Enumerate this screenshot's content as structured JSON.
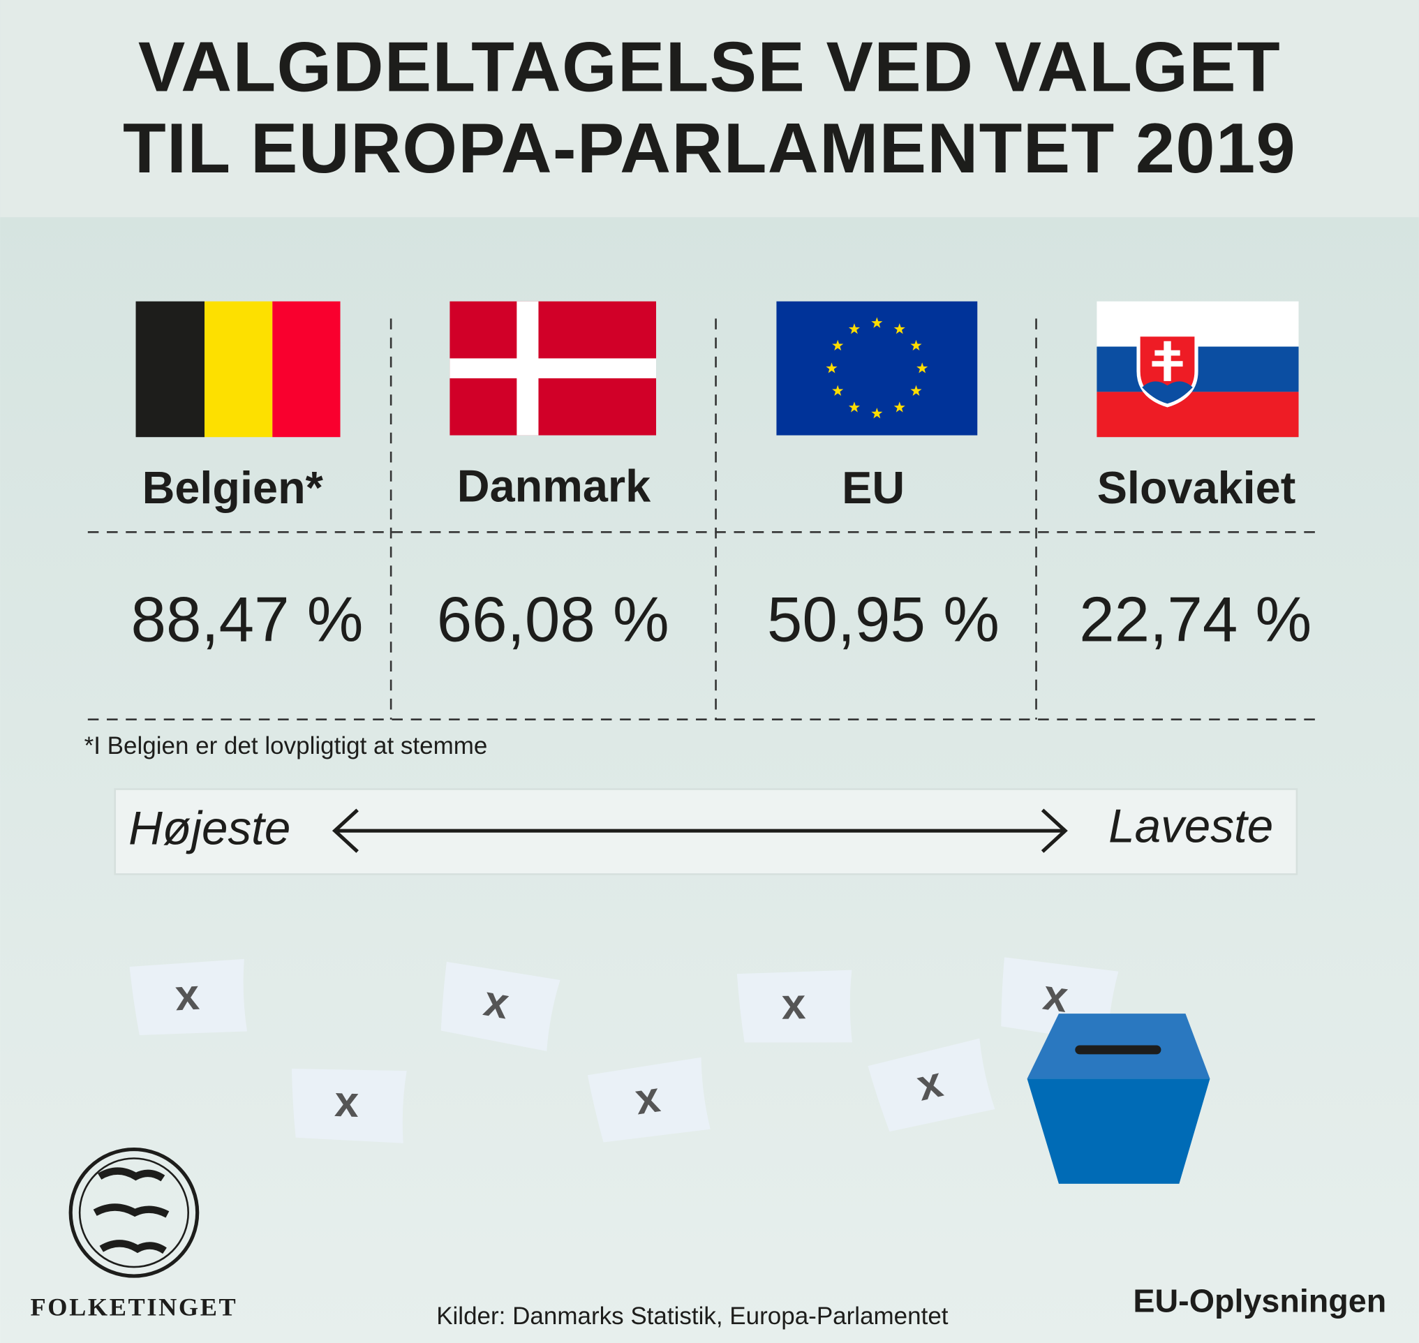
{
  "header": {
    "title_lines": [
      "VALGDELTAGELSE VED VALGET",
      "TIL EUROPA-PARLAMENTET 2019"
    ]
  },
  "countries": [
    {
      "name": "Belgien*",
      "turnout": "88,47 %"
    },
    {
      "name": "Danmark",
      "turnout": "66,08 %"
    },
    {
      "name": "EU",
      "turnout": "50,95 %"
    },
    {
      "name": "Slovakiet",
      "turnout": "22,74 %"
    }
  ],
  "footnote": "*I Belgien er det lovpligtigt at stemme",
  "scale": {
    "left": "Højeste",
    "right": "Laveste"
  },
  "ballot_mark": "x",
  "logo": "FOLKETINGET",
  "source": "Kilder: Danmarks Statistik, Europa-Parlamentet",
  "brand": "EU-Oplysningen"
}
